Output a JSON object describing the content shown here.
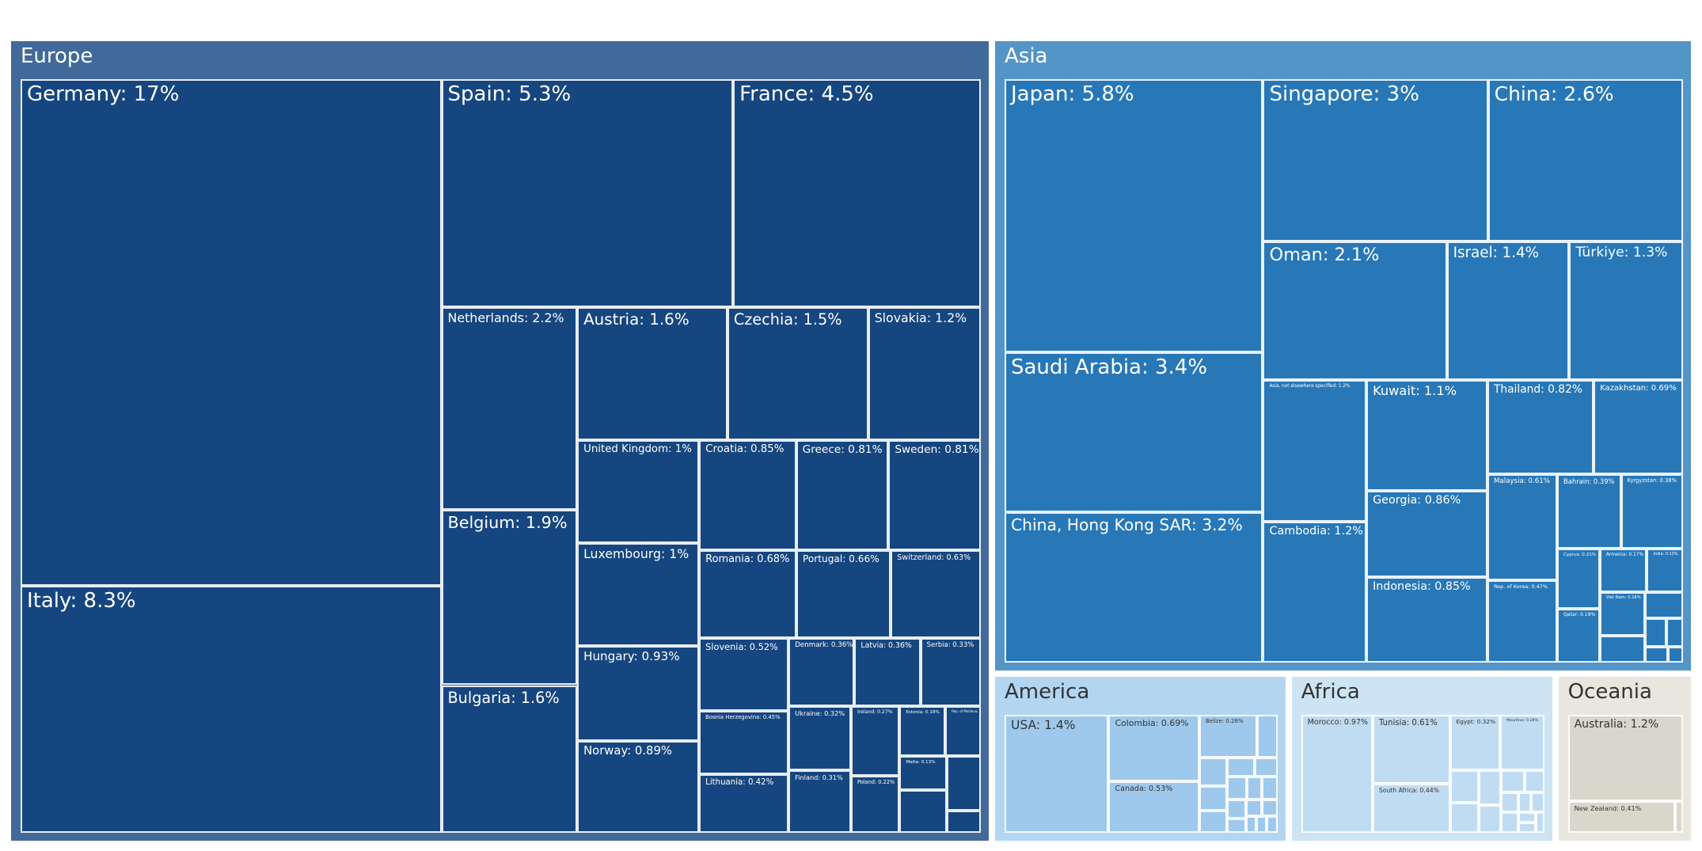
{
  "chart_data": {
    "type": "treemap",
    "title": "",
    "value_format": "{label}: {value}%",
    "colors": {
      "Europe": {
        "bg": "#416a9a",
        "tile": "#16467f",
        "text": "#ffffff"
      },
      "Asia": {
        "bg": "#5495c8",
        "tile": "#2878b8",
        "text": "#ffffff"
      },
      "America": {
        "bg": "#b2d6f2",
        "tile": "#9ec9ec",
        "text": "#333333"
      },
      "Africa": {
        "bg": "#cde4f5",
        "tile": "#c0dcf2",
        "text": "#333333"
      },
      "Oceania": {
        "bg": "#e8e6de",
        "tile": "#d9d7cb",
        "text": "#333333"
      }
    },
    "groups": [
      {
        "name": "Europe",
        "items": [
          {
            "label": "Germany",
            "value": 17
          },
          {
            "label": "Italy",
            "value": 8.3
          },
          {
            "label": "Spain",
            "value": 5.3
          },
          {
            "label": "France",
            "value": 4.5
          },
          {
            "label": "Netherlands",
            "value": 2.2
          },
          {
            "label": "Belgium",
            "value": 1.9
          },
          {
            "label": "Bulgaria",
            "value": 1.6
          },
          {
            "label": "Austria",
            "value": 1.6
          },
          {
            "label": "Czechia",
            "value": 1.5
          },
          {
            "label": "Slovakia",
            "value": 1.2
          },
          {
            "label": "United Kingdom",
            "value": 1
          },
          {
            "label": "Luxembourg",
            "value": 1
          },
          {
            "label": "Hungary",
            "value": 0.93
          },
          {
            "label": "Norway",
            "value": 0.89
          },
          {
            "label": "Croatia",
            "value": 0.85
          },
          {
            "label": "Greece",
            "value": 0.81
          },
          {
            "label": "Sweden",
            "value": 0.81
          },
          {
            "label": "Romania",
            "value": 0.68
          },
          {
            "label": "Portugal",
            "value": 0.66
          },
          {
            "label": "Switzerland",
            "value": 0.63
          },
          {
            "label": "Slovenia",
            "value": 0.52
          },
          {
            "label": "Bosnia Herzegovina",
            "value": 0.45
          },
          {
            "label": "Lithuania",
            "value": 0.42
          },
          {
            "label": "Denmark",
            "value": 0.36
          },
          {
            "label": "Latvia",
            "value": 0.36
          },
          {
            "label": "Serbia",
            "value": 0.33
          },
          {
            "label": "Ukraine",
            "value": 0.32
          },
          {
            "label": "Finland",
            "value": 0.31
          },
          {
            "label": "Ireland",
            "value": 0.27
          },
          {
            "label": "Poland",
            "value": 0.22
          },
          {
            "label": "Estonia",
            "value": 0.18
          },
          {
            "label": "Rep. of Moldova",
            "value": 0.14
          },
          {
            "label": "Malta",
            "value": 0.13
          },
          {
            "label": "",
            "value": 0.16
          },
          {
            "label": "",
            "value": 0.15
          },
          {
            "label": "",
            "value": 0.06
          }
        ]
      },
      {
        "name": "Asia",
        "items": [
          {
            "label": "Japan",
            "value": 5.8
          },
          {
            "label": "Saudi Arabia",
            "value": 3.4
          },
          {
            "label": "China, Hong Kong SAR",
            "value": 3.2
          },
          {
            "label": "Singapore",
            "value": 3
          },
          {
            "label": "China",
            "value": 2.6
          },
          {
            "label": "Oman",
            "value": 2.1
          },
          {
            "label": "Israel",
            "value": 1.4
          },
          {
            "label": "Türkiye",
            "value": 1.3
          },
          {
            "label": "Asia, not elsewhere specified",
            "value": 1.2
          },
          {
            "label": "Cambodia",
            "value": 1.2
          },
          {
            "label": "Kuwait",
            "value": 1.1
          },
          {
            "label": "Georgia",
            "value": 0.86
          },
          {
            "label": "Indonesia",
            "value": 0.85
          },
          {
            "label": "Thailand",
            "value": 0.82
          },
          {
            "label": "Kazakhstan",
            "value": 0.69
          },
          {
            "label": "Malaysia",
            "value": 0.61
          },
          {
            "label": "Rep. of Korea",
            "value": 0.47
          },
          {
            "label": "Bahrain",
            "value": 0.39
          },
          {
            "label": "Kyrgyzstan",
            "value": 0.38
          },
          {
            "label": "Cyprus",
            "value": 0.21
          },
          {
            "label": "Qatar",
            "value": 0.19
          },
          {
            "label": "Armenia",
            "value": 0.17
          },
          {
            "label": "India",
            "value": 0.13
          },
          {
            "label": "Viet Nam",
            "value": 0.16
          },
          {
            "label": "",
            "value": 0.1
          },
          {
            "label": "",
            "value": 0.08
          },
          {
            "label": "",
            "value": 0.05
          },
          {
            "label": "",
            "value": 0.04
          },
          {
            "label": "",
            "value": 0.03
          },
          {
            "label": "",
            "value": 0.02
          }
        ]
      },
      {
        "name": "America",
        "items": [
          {
            "label": "USA",
            "value": 1.4
          },
          {
            "label": "Colombia",
            "value": 0.69
          },
          {
            "label": "Canada",
            "value": 0.53
          },
          {
            "label": "Belize",
            "value": 0.28
          },
          {
            "label": "",
            "value": 0.1
          },
          {
            "label": "",
            "value": 0.09
          },
          {
            "label": "",
            "value": 0.08
          },
          {
            "label": "",
            "value": 0.07
          },
          {
            "label": "",
            "value": 0.06
          },
          {
            "label": "",
            "value": 0.05
          },
          {
            "label": "",
            "value": 0.05
          },
          {
            "label": "",
            "value": 0.04
          },
          {
            "label": "",
            "value": 0.04
          },
          {
            "label": "",
            "value": 0.04
          },
          {
            "label": "",
            "value": 0.03
          },
          {
            "label": "",
            "value": 0.03
          },
          {
            "label": "",
            "value": 0.03
          },
          {
            "label": "",
            "value": 0.02
          },
          {
            "label": "",
            "value": 0.02
          },
          {
            "label": "",
            "value": 0.02
          }
        ]
      },
      {
        "name": "Africa",
        "items": [
          {
            "label": "Morocco",
            "value": 0.97
          },
          {
            "label": "Tunisia",
            "value": 0.61
          },
          {
            "label": "South Africa",
            "value": 0.44
          },
          {
            "label": "Egypt",
            "value": 0.32
          },
          {
            "label": "Mauritius",
            "value": 0.28
          },
          {
            "label": "",
            "value": 0.11
          },
          {
            "label": "",
            "value": 0.1
          },
          {
            "label": "",
            "value": 0.09
          },
          {
            "label": "",
            "value": 0.07
          },
          {
            "label": "",
            "value": 0.06
          },
          {
            "label": "",
            "value": 0.05
          },
          {
            "label": "",
            "value": 0.04
          },
          {
            "label": "",
            "value": 0.04
          },
          {
            "label": "",
            "value": 0.03
          },
          {
            "label": "",
            "value": 0.03
          },
          {
            "label": "",
            "value": 0.02
          },
          {
            "label": "",
            "value": 0.02
          },
          {
            "label": "",
            "value": 0.02
          }
        ]
      },
      {
        "name": "Oceania",
        "items": [
          {
            "label": "Australia",
            "value": 1.2
          },
          {
            "label": "New Zealand",
            "value": 0.41
          },
          {
            "label": "",
            "value": 0.03
          }
        ]
      }
    ]
  }
}
